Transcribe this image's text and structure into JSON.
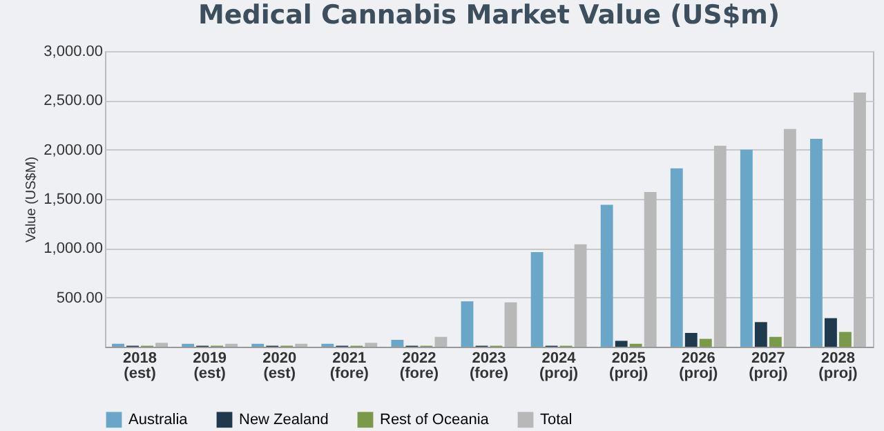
{
  "chart_data": {
    "type": "bar",
    "title": "Medical Cannabis Market Value (US$m)",
    "ylabel": "Value (US$M)",
    "categories": [
      "2018 (est)",
      "2019 (est)",
      "2020 (est)",
      "2021 (fore)",
      "2022 (fore)",
      "2023 (fore)",
      "2024 (proj)",
      "2025 (proj)",
      "2026 (proj)",
      "2027 (proj)",
      "2028 (proj)"
    ],
    "series": [
      {
        "name": "Australia",
        "color": "#6aa6c8",
        "values": [
          30,
          30,
          30,
          30,
          70,
          460,
          960,
          1440,
          1810,
          2000,
          2110
        ]
      },
      {
        "name": "New Zealand",
        "color": "#1f3a4d",
        "values": [
          10,
          10,
          10,
          10,
          10,
          10,
          10,
          60,
          140,
          250,
          290
        ]
      },
      {
        "name": "Rest of Oceania",
        "color": "#7a9a4a",
        "values": [
          10,
          10,
          10,
          10,
          10,
          10,
          10,
          30,
          80,
          100,
          150
        ]
      },
      {
        "name": "Total",
        "color": "#b8b8b8",
        "values": [
          40,
          30,
          30,
          40,
          100,
          450,
          1040,
          1570,
          2040,
          2210,
          2580
        ]
      }
    ],
    "ylim": [
      0,
      3000
    ],
    "yticks": [
      {
        "value": 500,
        "label": "500.00"
      },
      {
        "value": 1000,
        "label": "1,000.00"
      },
      {
        "value": 1500,
        "label": "1,500.00"
      },
      {
        "value": 2000,
        "label": "2,000.00"
      },
      {
        "value": 2500,
        "label": "2,500.00"
      },
      {
        "value": 3000,
        "label": "3,000.00"
      }
    ],
    "grid": "y",
    "legend": "bottom"
  }
}
